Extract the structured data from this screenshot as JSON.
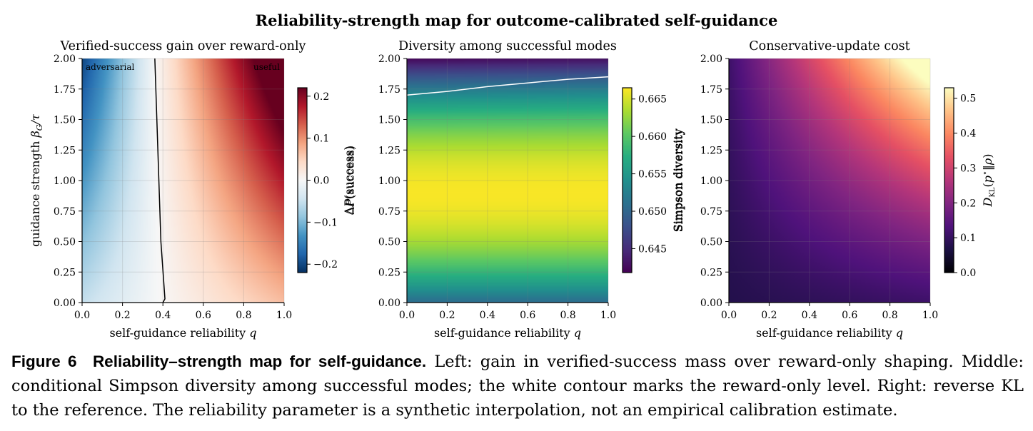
{
  "figure": {
    "suptitle": "Reliability-strength map for outcome-calibrated self-guidance"
  },
  "chart_data": [
    {
      "type": "heatmap",
      "title": "Verified-success gain over reward-only",
      "xlabel": "self-guidance reliability q",
      "ylabel": "guidance strength βG/τ",
      "xlim": [
        0.0,
        1.0
      ],
      "ylim": [
        0.0,
        2.0
      ],
      "xticks": [
        "0.0",
        "0.2",
        "0.4",
        "0.6",
        "0.8",
        "1.0"
      ],
      "yticks": [
        "0.00",
        "0.25",
        "0.50",
        "0.75",
        "1.00",
        "1.25",
        "1.50",
        "1.75",
        "2.00"
      ],
      "colormap": "RdBu_r",
      "colorbar": {
        "label": "ΔP(success)",
        "range": [
          -0.22,
          0.22
        ],
        "ticks": [
          -0.2,
          -0.1,
          0.0,
          0.1,
          0.2
        ],
        "tick_labels": [
          "−0.2",
          "−0.1",
          "0.0",
          "0.1",
          "0.2"
        ]
      },
      "annotations": [
        "adversarial",
        "useful"
      ],
      "zero_contour": [
        [
          0.4,
          0.0
        ],
        [
          0.41,
          0.03
        ],
        [
          0.39,
          0.5
        ],
        [
          0.37,
          1.5
        ],
        [
          0.36,
          2.0
        ]
      ],
      "grid": true
    },
    {
      "type": "heatmap",
      "title": "Diversity among successful modes",
      "xlabel": "self-guidance reliability q",
      "ylabel": "ΔP(success)",
      "xlim": [
        0.0,
        1.0
      ],
      "ylim": [
        0.0,
        2.0
      ],
      "xticks": [
        "0.0",
        "0.2",
        "0.4",
        "0.6",
        "0.8",
        "1.0"
      ],
      "yticks": [
        "0.00",
        "0.25",
        "0.50",
        "0.75",
        "1.00",
        "1.25",
        "1.50",
        "1.75",
        "2.00"
      ],
      "colormap": "viridis",
      "colorbar": {
        "label": "Simpson diversity",
        "range": [
          0.6418,
          0.6665
        ],
        "ticks": [
          0.645,
          0.65,
          0.655,
          0.66,
          0.665
        ],
        "tick_labels": [
          "0.645",
          "0.650",
          "0.655",
          "0.660",
          "0.665"
        ]
      },
      "reward_only_contour": [
        [
          0.0,
          1.7
        ],
        [
          0.2,
          1.73
        ],
        [
          0.4,
          1.77
        ],
        [
          0.6,
          1.8
        ],
        [
          0.8,
          1.83
        ],
        [
          1.0,
          1.85
        ]
      ],
      "grid": true
    },
    {
      "type": "heatmap",
      "title": "Conservative-update cost",
      "xlabel": "self-guidance reliability q",
      "ylabel": "Simpson diversity",
      "xlim": [
        0.0,
        1.0
      ],
      "ylim": [
        0.0,
        2.0
      ],
      "xticks": [
        "0.0",
        "0.2",
        "0.4",
        "0.6",
        "0.8",
        "1.0"
      ],
      "yticks": [
        "0.00",
        "0.25",
        "0.50",
        "0.75",
        "1.00",
        "1.25",
        "1.50",
        "1.75",
        "2.00"
      ],
      "colormap": "magma",
      "colorbar": {
        "label": "DKL(p⋆‖ρ)",
        "range": [
          0.0,
          0.53
        ],
        "ticks": [
          0.0,
          0.1,
          0.2,
          0.3,
          0.4,
          0.5
        ],
        "tick_labels": [
          "0.0",
          "0.1",
          "0.2",
          "0.3",
          "0.4",
          "0.5"
        ]
      },
      "grid": true
    }
  ],
  "caption": {
    "label": "Figure 6",
    "heading": "Reliability–strength map for self-guidance.",
    "text": "Left: gain in verified-success mass over reward-only shaping. Middle: conditional Simpson diversity among successful modes; the white contour marks the reward-only level. Right: reverse KL to the reference. The reliability parameter is a synthetic interpolation, not an empirical calibration estimate."
  }
}
